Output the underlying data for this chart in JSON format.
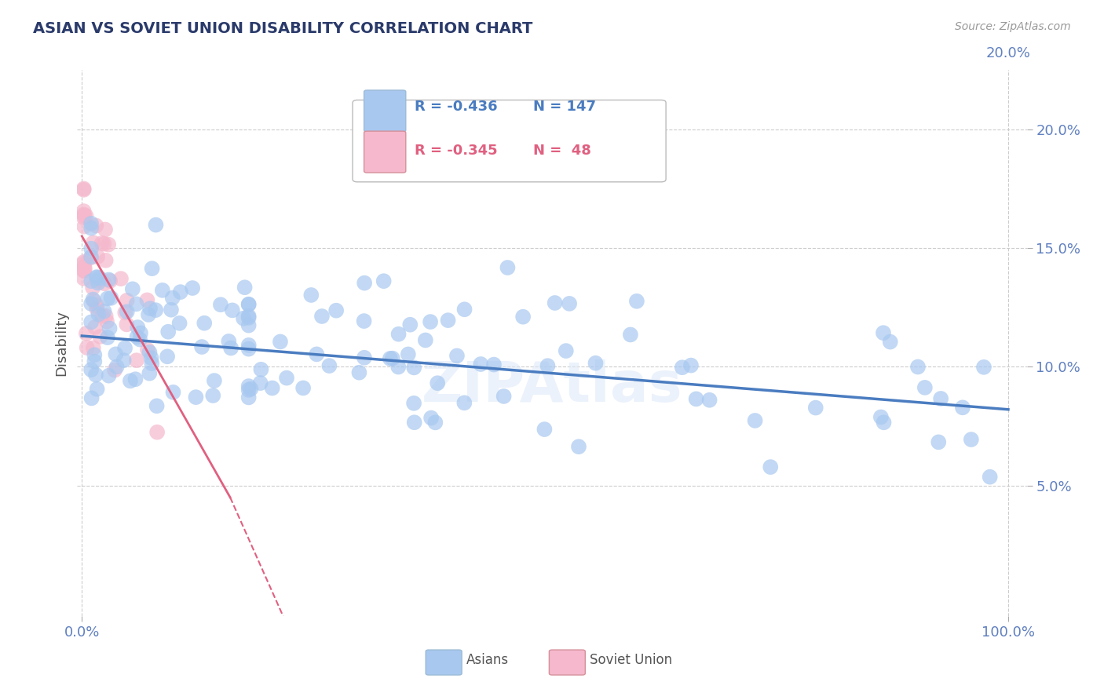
{
  "title": "ASIAN VS SOVIET UNION DISABILITY CORRELATION CHART",
  "source": "Source: ZipAtlas.com",
  "ylabel": "Disability",
  "color_asian": "#a8c8f0",
  "color_soviet": "#f5b8cc",
  "color_asian_line": "#4a7cc0",
  "color_soviet_line": "#e06080",
  "title_color": "#2a3a6a",
  "source_color": "#999999",
  "watermark": "ZIPAtlas",
  "background_color": "#ffffff",
  "grid_color": "#cccccc",
  "legend_r1": "R = -0.436",
  "legend_n1": "N = 147",
  "legend_r2": "R = -0.345",
  "legend_n2": "N =  48",
  "ytick_color": "#6080c0",
  "asian_line_x": [
    0.0,
    1.0
  ],
  "asian_line_y": [
    0.113,
    0.082
  ],
  "soviet_line_x": [
    0.0,
    0.16
  ],
  "soviet_line_y": [
    0.155,
    0.045
  ],
  "xlim": [
    -0.005,
    1.02
  ],
  "ylim": [
    -0.005,
    0.225
  ],
  "yticks": [
    0.05,
    0.1,
    0.15,
    0.2
  ],
  "ytick_labels": [
    "5.0%",
    "10.0%",
    "15.0%",
    "20.0%"
  ],
  "xticks": [
    0.0,
    1.0
  ],
  "xtick_labels": [
    "0.0%",
    "100.0%"
  ]
}
